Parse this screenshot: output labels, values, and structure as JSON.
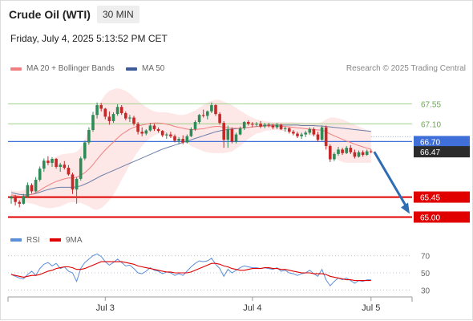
{
  "header": {
    "title": "Crude Oil (WTI)",
    "timeframe": "30 MIN",
    "datetime": "Friday, July 4, 2025 5:13:52 PM CET"
  },
  "legend": {
    "ma20_bb": "MA 20 + Bollinger Bands",
    "ma50": "MA 50",
    "credit": "Research © 2025 Trading Central",
    "rsi": "RSI",
    "rsi_ma": "9MA"
  },
  "colors": {
    "bullish": "#2e8b57",
    "bearish": "#c62828",
    "ma20": "#f08080",
    "ma50": "#6b7fa8",
    "bollinger_fill": "#fde4e4",
    "pivot": "#3f6fd8",
    "resistance_line": "#9fd18b",
    "support_line": "#e00000",
    "forecast_arrow": "#2f6db3",
    "rsi": "#5b8fd8",
    "rsi_ma": "#e00000"
  },
  "chart_data": [
    {
      "type": "candlestick",
      "title": "Crude Oil (WTI)",
      "timeframe": "30 MIN",
      "x_tick_labels": [
        "Jul 3",
        "Jul 4",
        "Jul 5"
      ],
      "x_ticks_bar_index": [
        23,
        59,
        88
      ],
      "ylim": [
        64.9,
        67.9
      ],
      "grid": false,
      "levels": {
        "resistance": [
          {
            "value": 67.55,
            "label": "67.55"
          },
          {
            "value": 67.1,
            "label": "67.10"
          }
        ],
        "pivot": {
          "value": 66.7,
          "label": "66.70"
        },
        "current_price": {
          "value": 66.47,
          "label": "66.47"
        },
        "support": [
          {
            "value": 65.45,
            "label": "65.45"
          },
          {
            "value": 65.0,
            "label": "65.00"
          }
        ]
      },
      "forecast": {
        "from": 66.47,
        "to": 65.0,
        "direction": "down"
      },
      "candles": [
        [
          65.42,
          65.48,
          65.3,
          65.46
        ],
        [
          65.46,
          65.5,
          65.26,
          65.34
        ],
        [
          65.34,
          65.38,
          65.22,
          65.3
        ],
        [
          65.3,
          65.52,
          65.28,
          65.47
        ],
        [
          65.47,
          65.78,
          65.44,
          65.72
        ],
        [
          65.72,
          65.76,
          65.53,
          65.58
        ],
        [
          65.58,
          65.9,
          65.56,
          65.84
        ],
        [
          65.84,
          66.14,
          65.8,
          66.09
        ],
        [
          66.09,
          66.32,
          66.02,
          66.27
        ],
        [
          66.27,
          66.37,
          66.17,
          66.22
        ],
        [
          66.22,
          66.35,
          66.13,
          66.31
        ],
        [
          66.31,
          66.33,
          66.09,
          66.13
        ],
        [
          66.13,
          66.22,
          66.02,
          66.18
        ],
        [
          66.18,
          66.26,
          66.07,
          66.11
        ],
        [
          66.11,
          66.17,
          65.93,
          65.96
        ],
        [
          65.96,
          66.0,
          65.52,
          65.62
        ],
        [
          65.62,
          65.9,
          65.3,
          65.86
        ],
        [
          65.86,
          66.36,
          65.82,
          66.32
        ],
        [
          66.32,
          66.72,
          66.28,
          66.68
        ],
        [
          66.68,
          67.02,
          66.63,
          66.96
        ],
        [
          66.96,
          67.37,
          66.92,
          67.3
        ],
        [
          67.3,
          67.58,
          67.22,
          67.52
        ],
        [
          67.52,
          67.57,
          67.38,
          67.44
        ],
        [
          67.44,
          67.46,
          67.2,
          67.26
        ],
        [
          67.26,
          67.38,
          67.08,
          67.16
        ],
        [
          67.16,
          67.36,
          67.12,
          67.32
        ],
        [
          67.32,
          67.54,
          67.28,
          67.48
        ],
        [
          67.48,
          67.52,
          67.3,
          67.34
        ],
        [
          67.34,
          67.38,
          67.18,
          67.22
        ],
        [
          67.22,
          67.3,
          67.14,
          67.24
        ],
        [
          67.24,
          67.28,
          67.06,
          67.1
        ],
        [
          67.1,
          67.14,
          66.86,
          66.92
        ],
        [
          66.92,
          67.02,
          66.82,
          66.88
        ],
        [
          66.88,
          66.98,
          66.84,
          66.95
        ],
        [
          66.95,
          67.12,
          66.92,
          67.06
        ],
        [
          67.06,
          67.1,
          66.94,
          66.98
        ],
        [
          66.98,
          67.02,
          66.9,
          66.94
        ],
        [
          66.94,
          66.96,
          66.8,
          66.84
        ],
        [
          66.84,
          66.9,
          66.76,
          66.86
        ],
        [
          66.86,
          66.92,
          66.78,
          66.82
        ],
        [
          66.82,
          66.86,
          66.68,
          66.72
        ],
        [
          66.72,
          66.8,
          66.64,
          66.76
        ],
        [
          66.76,
          66.84,
          66.64,
          66.68
        ],
        [
          66.68,
          66.86,
          66.66,
          66.82
        ],
        [
          66.82,
          67.02,
          66.8,
          66.98
        ],
        [
          66.98,
          67.18,
          66.94,
          67.14
        ],
        [
          67.14,
          67.32,
          67.1,
          67.3
        ],
        [
          67.3,
          67.42,
          67.24,
          67.28
        ],
        [
          67.28,
          67.4,
          67.2,
          67.38
        ],
        [
          67.38,
          67.58,
          67.34,
          67.52
        ],
        [
          67.52,
          67.54,
          67.28,
          67.32
        ],
        [
          67.32,
          67.36,
          67.08,
          67.12
        ],
        [
          67.12,
          67.16,
          66.56,
          66.74
        ],
        [
          66.74,
          67.06,
          66.56,
          66.98
        ],
        [
          66.98,
          67.02,
          66.66,
          66.7
        ],
        [
          66.7,
          66.9,
          66.66,
          66.86
        ],
        [
          66.86,
          67.04,
          66.84,
          67.0
        ],
        [
          67.0,
          67.16,
          66.96,
          67.14
        ],
        [
          67.14,
          67.18,
          67.06,
          67.1
        ],
        [
          67.1,
          67.14,
          67.02,
          67.08
        ],
        [
          67.08,
          67.14,
          67.04,
          67.1
        ],
        [
          67.1,
          67.16,
          67.0,
          67.04
        ],
        [
          67.04,
          67.12,
          67.0,
          67.08
        ],
        [
          67.08,
          67.12,
          67.02,
          67.06
        ],
        [
          67.06,
          67.1,
          66.98,
          67.02
        ],
        [
          67.02,
          67.12,
          66.98,
          67.08
        ],
        [
          67.08,
          67.1,
          66.96,
          66.98
        ],
        [
          66.98,
          67.04,
          66.92,
          67.0
        ],
        [
          67.0,
          67.02,
          66.88,
          66.92
        ],
        [
          66.92,
          66.96,
          66.84,
          66.88
        ],
        [
          66.88,
          66.92,
          66.78,
          66.82
        ],
        [
          66.82,
          66.9,
          66.76,
          66.86
        ],
        [
          66.86,
          66.94,
          66.8,
          66.9
        ],
        [
          66.9,
          67.02,
          66.86,
          66.98
        ],
        [
          66.98,
          67.02,
          66.82,
          66.86
        ],
        [
          66.86,
          66.92,
          66.7,
          66.74
        ],
        [
          66.74,
          67.06,
          66.72,
          67.02
        ],
        [
          67.02,
          67.06,
          66.52,
          66.6
        ],
        [
          66.6,
          66.64,
          66.24,
          66.3
        ],
        [
          66.3,
          66.46,
          66.26,
          66.42
        ],
        [
          66.42,
          66.58,
          66.38,
          66.52
        ],
        [
          66.52,
          66.56,
          66.4,
          66.44
        ],
        [
          66.44,
          66.6,
          66.42,
          66.56
        ],
        [
          66.56,
          66.62,
          66.42,
          66.46
        ],
        [
          66.46,
          66.52,
          66.32,
          66.36
        ],
        [
          66.36,
          66.5,
          66.34,
          66.46
        ],
        [
          66.46,
          66.5,
          66.36,
          66.4
        ],
        [
          66.4,
          66.52,
          66.38,
          66.48
        ],
        [
          66.48,
          66.52,
          66.44,
          66.47
        ]
      ],
      "ma20": [
        65.5,
        65.48,
        65.47,
        65.47,
        65.49,
        65.51,
        65.55,
        65.6,
        65.66,
        65.71,
        65.76,
        65.8,
        65.83,
        65.86,
        65.88,
        65.88,
        65.9,
        65.94,
        66.0,
        66.08,
        66.18,
        66.3,
        66.41,
        66.51,
        66.6,
        66.69,
        66.78,
        66.86,
        66.92,
        66.98,
        67.02,
        67.05,
        67.07,
        67.09,
        67.11,
        67.12,
        67.12,
        67.11,
        67.09,
        67.07,
        67.04,
        67.02,
        67.0,
        66.98,
        66.97,
        66.97,
        66.98,
        66.99,
        67.01,
        67.03,
        67.04,
        67.04,
        67.02,
        67.01,
        67.0,
        67.0,
        67.0,
        67.01,
        67.02,
        67.03,
        67.04,
        67.04,
        67.05,
        67.05,
        67.05,
        67.05,
        67.04,
        67.04,
        67.03,
        67.02,
        67.01,
        67.0,
        66.99,
        66.98,
        66.97,
        66.96,
        66.96,
        66.92,
        66.87,
        66.83,
        66.79,
        66.75,
        66.71,
        66.68,
        66.64,
        66.61,
        66.58,
        66.55,
        66.53
      ],
      "bollinger_upper": [
        65.6,
        65.58,
        65.58,
        65.6,
        65.66,
        65.72,
        65.82,
        65.96,
        66.1,
        66.22,
        66.3,
        66.36,
        66.4,
        66.42,
        66.43,
        66.44,
        66.47,
        66.56,
        66.74,
        66.96,
        67.2,
        67.44,
        67.62,
        67.76,
        67.84,
        67.88,
        67.9,
        67.88,
        67.84,
        67.78,
        67.7,
        67.62,
        67.54,
        67.48,
        67.42,
        67.38,
        67.36,
        67.36,
        67.36,
        67.34,
        67.32,
        67.3,
        67.3,
        67.32,
        67.36,
        67.4,
        67.46,
        67.52,
        67.58,
        67.62,
        67.64,
        67.64,
        67.6,
        67.56,
        67.52,
        67.46,
        67.4,
        67.34,
        67.28,
        67.24,
        67.2,
        67.18,
        67.16,
        67.15,
        67.14,
        67.14,
        67.14,
        67.14,
        67.14,
        67.14,
        67.13,
        67.13,
        67.12,
        67.12,
        67.12,
        67.12,
        67.14,
        67.2,
        67.24,
        67.24,
        67.22,
        67.2,
        67.16,
        67.12,
        67.08,
        67.04,
        67.0,
        66.96,
        66.94
      ],
      "bollinger_lower": [
        65.4,
        65.38,
        65.36,
        65.34,
        65.32,
        65.3,
        65.28,
        65.24,
        65.22,
        65.2,
        65.2,
        65.22,
        65.24,
        65.28,
        65.32,
        65.34,
        65.32,
        65.32,
        65.28,
        65.24,
        65.18,
        65.16,
        65.2,
        65.28,
        65.38,
        65.5,
        65.66,
        65.84,
        66.0,
        66.18,
        66.34,
        66.48,
        66.6,
        66.7,
        66.78,
        66.84,
        66.88,
        66.86,
        66.82,
        66.78,
        66.74,
        66.72,
        66.7,
        66.66,
        66.6,
        66.56,
        66.52,
        66.48,
        66.46,
        66.44,
        66.44,
        66.44,
        66.44,
        66.46,
        66.48,
        66.54,
        66.6,
        66.68,
        66.76,
        66.82,
        66.88,
        66.9,
        66.94,
        66.95,
        66.96,
        66.96,
        66.94,
        66.94,
        66.92,
        66.9,
        66.89,
        66.87,
        66.86,
        66.84,
        66.82,
        66.8,
        66.72,
        66.6,
        66.44,
        66.34,
        66.28,
        66.24,
        66.22,
        66.22,
        66.22,
        66.22,
        66.22,
        66.22,
        66.22
      ],
      "ma50": [
        65.55,
        65.53,
        65.51,
        65.5,
        65.5,
        65.51,
        65.53,
        65.56,
        65.59,
        65.62,
        65.64,
        65.66,
        65.67,
        65.67,
        65.67,
        65.67,
        65.68,
        65.7,
        65.74,
        65.78,
        65.83,
        65.88,
        65.93,
        65.97,
        66.01,
        66.05,
        66.09,
        66.13,
        66.17,
        66.21,
        66.25,
        66.29,
        66.33,
        66.37,
        66.41,
        66.45,
        66.49,
        66.53,
        66.56,
        66.59,
        66.62,
        66.65,
        66.68,
        66.71,
        66.74,
        66.77,
        66.8,
        66.83,
        66.86,
        66.89,
        66.92,
        66.94,
        66.96,
        66.97,
        66.98,
        66.99,
        67.0,
        67.01,
        67.02,
        67.03,
        67.04,
        67.05,
        67.06,
        67.07,
        67.07,
        67.07,
        67.07,
        67.07,
        67.07,
        67.07,
        67.07,
        67.06,
        67.06,
        67.06,
        67.06,
        67.05,
        67.05,
        67.04,
        67.03,
        67.02,
        67.01,
        67.0,
        66.99,
        66.98,
        66.97,
        66.96,
        66.95,
        66.94,
        66.93
      ]
    },
    {
      "type": "line",
      "title": "RSI",
      "series": [
        {
          "name": "RSI"
        },
        {
          "name": "9MA"
        }
      ],
      "ylim": [
        22,
        78
      ],
      "y_ticks": [
        70,
        50,
        30
      ],
      "rsi": [
        48,
        46,
        44,
        43,
        48,
        52,
        47,
        55,
        60,
        62,
        58,
        61,
        55,
        57,
        52,
        50,
        40,
        55,
        62,
        66,
        70,
        72,
        69,
        63,
        59,
        62,
        66,
        62,
        58,
        59,
        55,
        50,
        49,
        52,
        56,
        53,
        52,
        49,
        51,
        50,
        47,
        49,
        47,
        52,
        57,
        61,
        64,
        63,
        64,
        67,
        60,
        55,
        46,
        54,
        50,
        53,
        56,
        58,
        57,
        56,
        56,
        55,
        56,
        55,
        54,
        56,
        52,
        53,
        50,
        49,
        47,
        49,
        50,
        53,
        49,
        46,
        54,
        42,
        35,
        40,
        44,
        42,
        44,
        41,
        38,
        41,
        40,
        42,
        42
      ],
      "rsi_ma": [
        48,
        47,
        46,
        45,
        46,
        47,
        47,
        48,
        50,
        52,
        53,
        55,
        56,
        57,
        57,
        56,
        54,
        54,
        55,
        57,
        59,
        61,
        63,
        63,
        63,
        63,
        63,
        63,
        62,
        61,
        60,
        58,
        57,
        56,
        55,
        54,
        53,
        52,
        51,
        51,
        50,
        50,
        50,
        50,
        51,
        53,
        55,
        57,
        59,
        61,
        61,
        60,
        58,
        57,
        55,
        54,
        53,
        53,
        54,
        55,
        55,
        55,
        56,
        56,
        55,
        55,
        54,
        54,
        53,
        52,
        51,
        50,
        50,
        50,
        49,
        49,
        49,
        48,
        46,
        45,
        44,
        43,
        42,
        42,
        41,
        41,
        41,
        41,
        41
      ]
    }
  ]
}
